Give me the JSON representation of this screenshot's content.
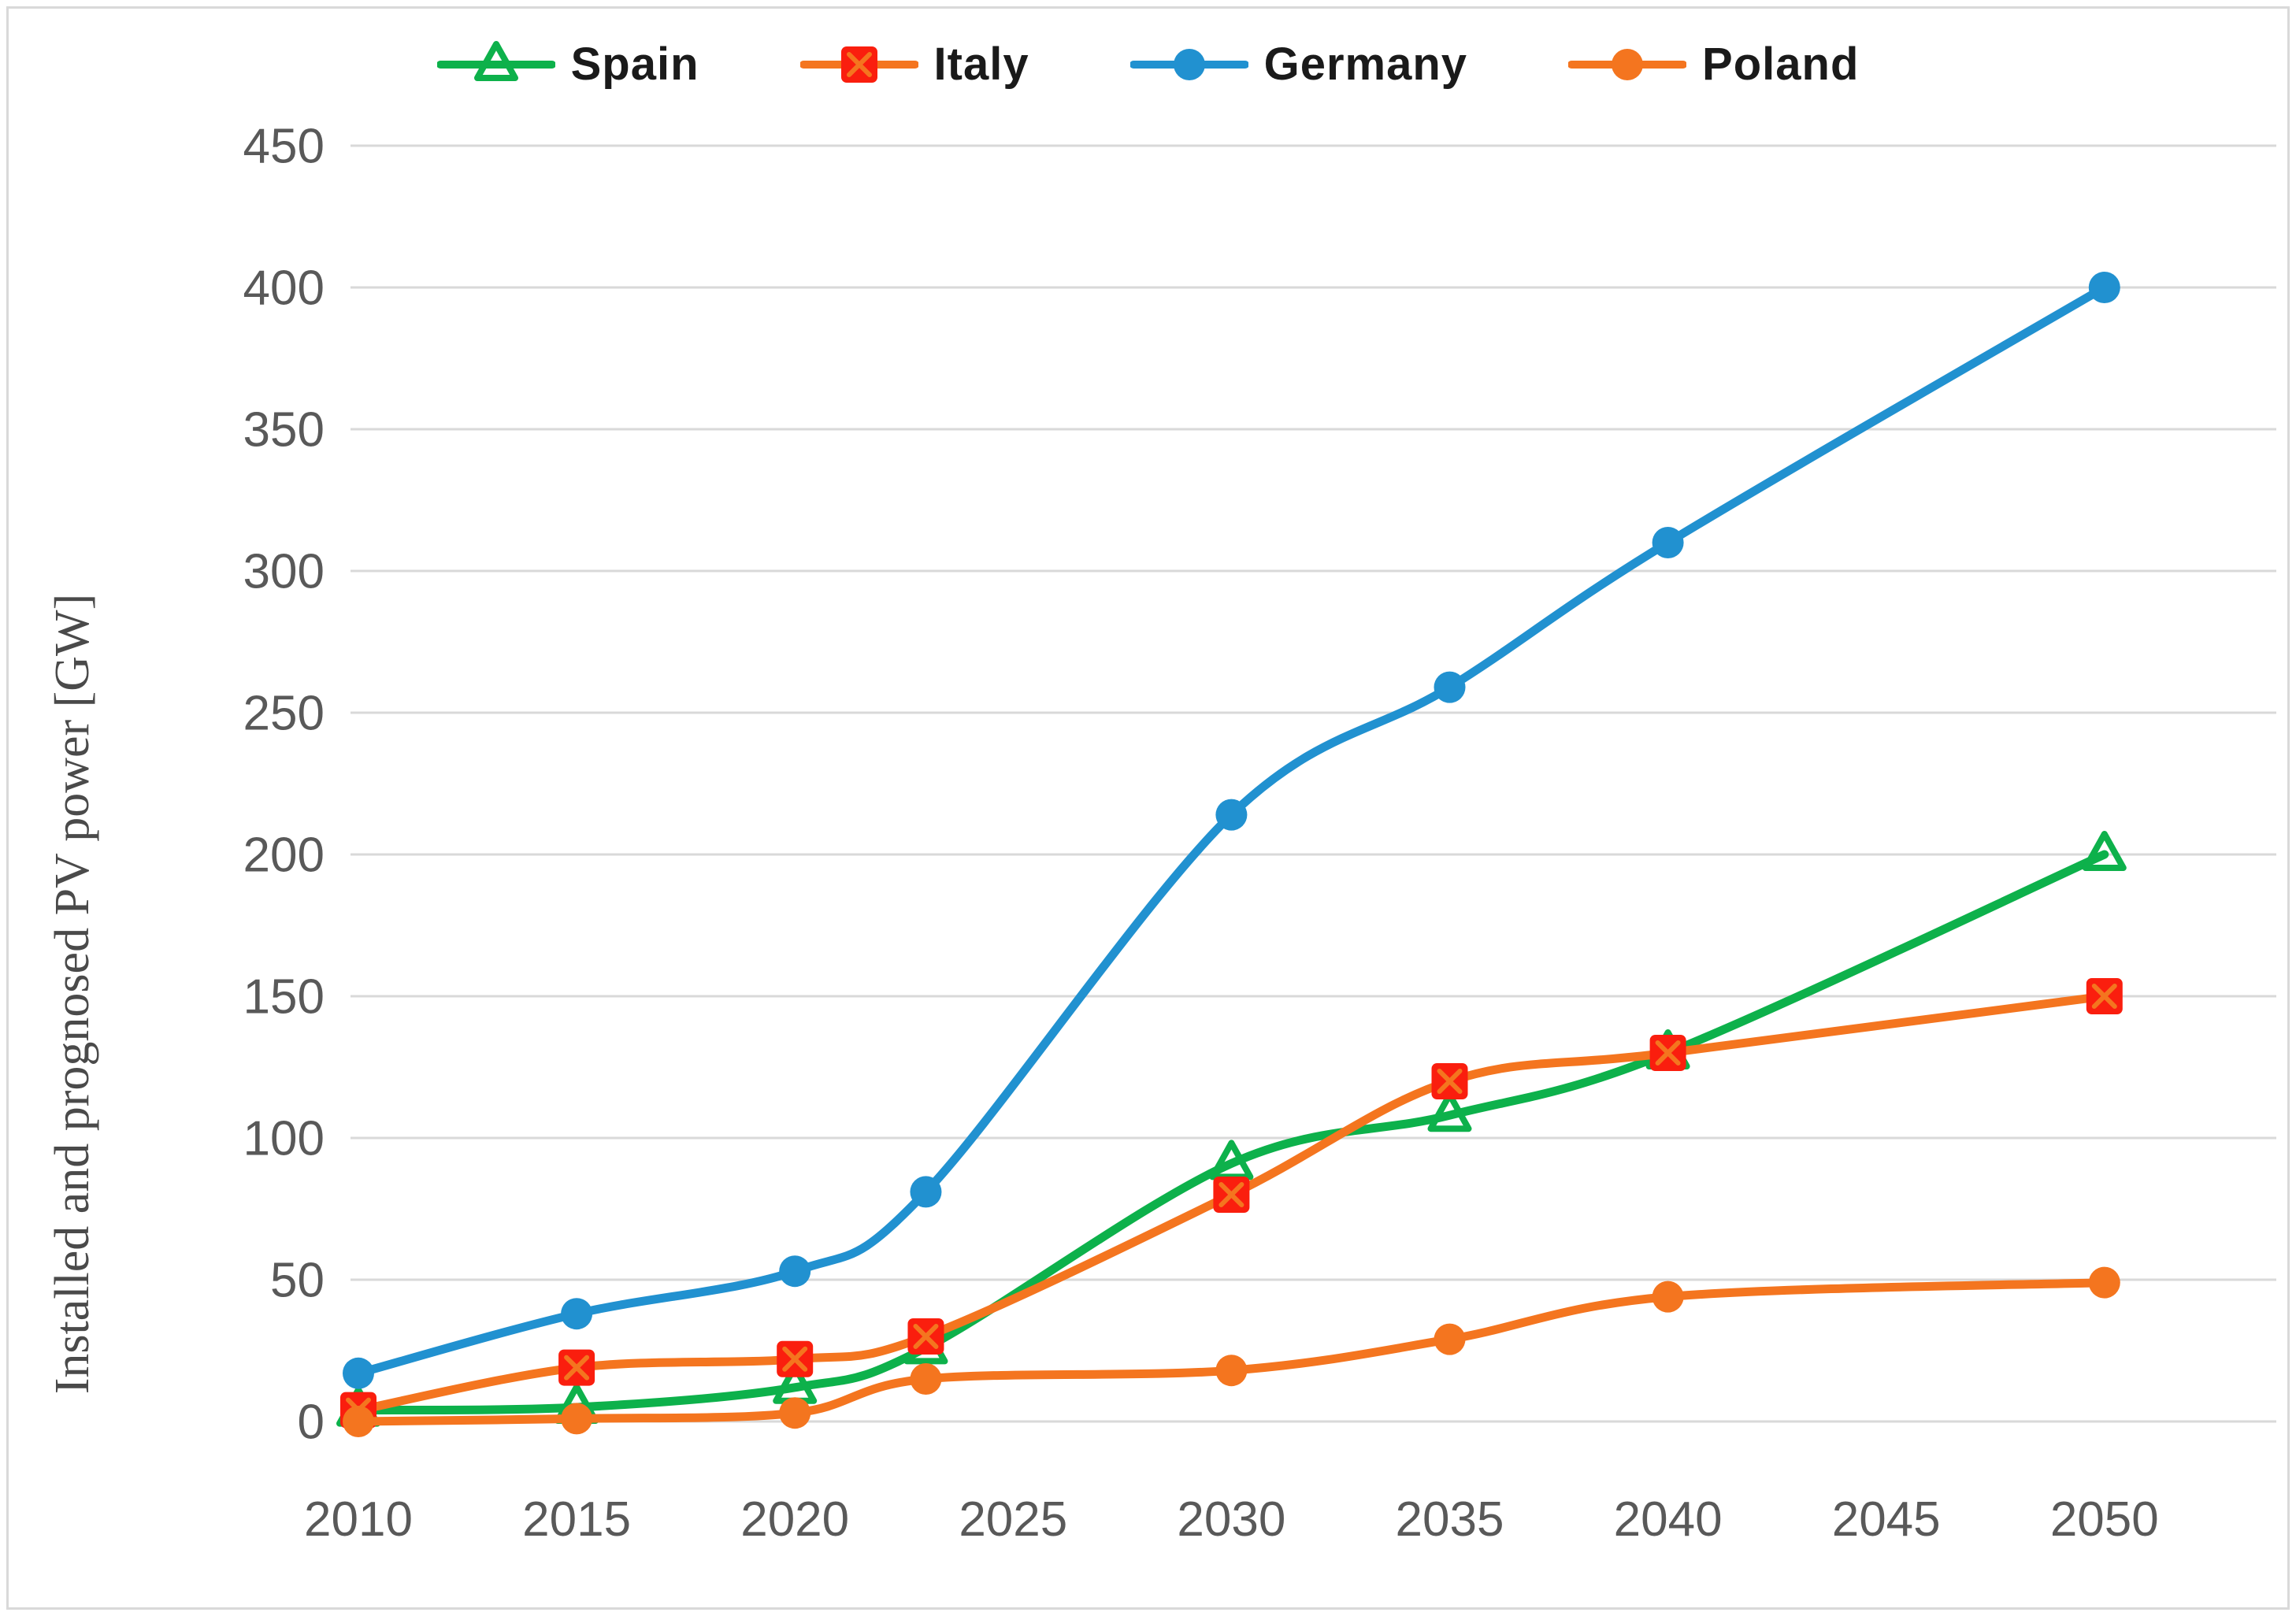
{
  "figure": {
    "background": "#ffffff",
    "border_color": "#d9d9d9",
    "gridline_color": "#d9d9d9",
    "tick_color": "#595959"
  },
  "legend": {
    "items": [
      {
        "label": "Spain",
        "color": "#0db14b",
        "marker": "triangle-open"
      },
      {
        "label": "Italy",
        "color": "#f4751f",
        "marker": "square-x",
        "marker_color": "#fa1e0e"
      },
      {
        "label": "Germany",
        "color": "#2191d0",
        "marker": "circle"
      },
      {
        "label": "Poland",
        "color": "#f4751f",
        "marker": "circle"
      }
    ]
  },
  "chart_data": {
    "type": "line",
    "title": "",
    "xlabel": "",
    "ylabel": "Installed and prognosed PV power [GW]",
    "line_style": "smooth",
    "grid": "horizontal",
    "legend_position": "top",
    "x": [
      2010,
      2015,
      2020,
      2023,
      2030,
      2035,
      2040,
      2050
    ],
    "xticks": [
      2010,
      2015,
      2020,
      2025,
      2030,
      2035,
      2040,
      2045,
      2050
    ],
    "yticks": [
      0,
      50,
      100,
      150,
      200,
      250,
      300,
      350,
      400,
      450
    ],
    "xlim": [
      2010,
      2050
    ],
    "ylim": [
      0,
      450
    ],
    "series": [
      {
        "name": "Spain",
        "color": "#0db14b",
        "marker": "triangle-open",
        "marker_color": "#0db14b",
        "values": [
          4,
          5,
          12,
          26,
          91,
          108,
          130,
          200
        ]
      },
      {
        "name": "Italy",
        "color": "#f4751f",
        "marker": "square-x",
        "marker_color": "#fa1e0e",
        "values": [
          4,
          19,
          22,
          30,
          80,
          120,
          130,
          150
        ]
      },
      {
        "name": "Germany",
        "color": "#2191d0",
        "marker": "circle",
        "marker_color": "#2191d0",
        "values": [
          17,
          38,
          53,
          81,
          214,
          259,
          310,
          400
        ]
      },
      {
        "name": "Poland",
        "color": "#f4751f",
        "marker": "circle",
        "marker_color": "#f4751f",
        "values": [
          0,
          1,
          3,
          15,
          18,
          29,
          44,
          49
        ]
      }
    ]
  }
}
